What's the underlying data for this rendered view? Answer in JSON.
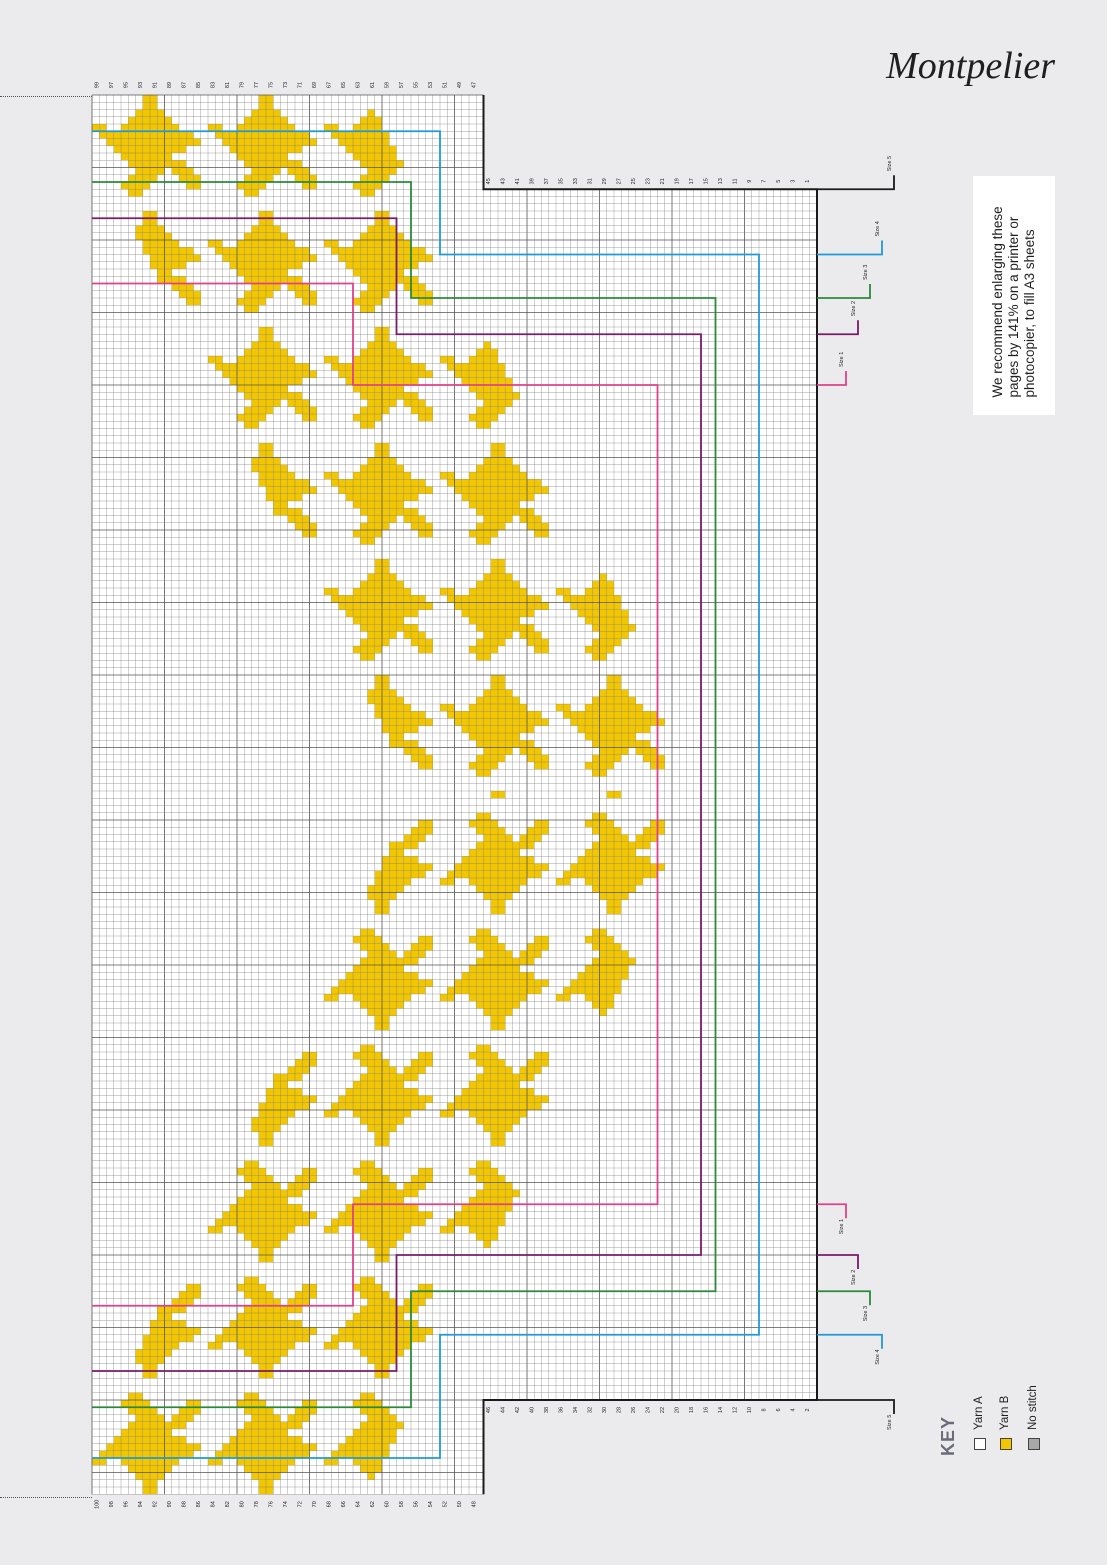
{
  "page": {
    "title": "Montpelier"
  },
  "note": {
    "text": "We recommend enlarging these pages by 141% on a printer or photocopier, to fill A3 sheets"
  },
  "key": {
    "title": "KEY",
    "items": [
      {
        "label": "Yarn A",
        "color": "#ffffff"
      },
      {
        "label": "Yarn B",
        "color": "#f2c600"
      },
      {
        "label": "No stitch",
        "color": "#a8a8a8"
      }
    ]
  },
  "chart_data": {
    "type": "knitting-chart",
    "columns_top": [
      "99",
      "97",
      "95",
      "93",
      "91",
      "89",
      "87",
      "85",
      "83",
      "81",
      "79",
      "77",
      "75",
      "73",
      "71",
      "69",
      "67",
      "65",
      "63",
      "61",
      "59",
      "57",
      "55",
      "53",
      "51",
      "49",
      "47"
    ],
    "columns_top_inner": [
      "45",
      "43",
      "41",
      "39",
      "37",
      "35",
      "33",
      "31",
      "29",
      "27",
      "25",
      "23",
      "21",
      "19",
      "17",
      "15",
      "13",
      "11",
      "9",
      "7",
      "5",
      "3",
      "1"
    ],
    "columns_bottom": [
      "100",
      "98",
      "96",
      "94",
      "92",
      "90",
      "88",
      "86",
      "84",
      "82",
      "80",
      "78",
      "76",
      "74",
      "72",
      "70",
      "68",
      "66",
      "64",
      "62",
      "60",
      "58",
      "56",
      "54",
      "52",
      "50",
      "48"
    ],
    "columns_bottom_inner": [
      "46",
      "44",
      "42",
      "40",
      "38",
      "36",
      "34",
      "32",
      "30",
      "28",
      "26",
      "24",
      "22",
      "20",
      "18",
      "16",
      "14",
      "12",
      "10",
      "8",
      "6",
      "4",
      "2"
    ],
    "sizes": [
      {
        "label": "Size 1",
        "color": "#e0418a"
      },
      {
        "label": "Size 2",
        "color": "#7a1a6a"
      },
      {
        "label": "Size 3",
        "color": "#2a8a3a"
      },
      {
        "label": "Size 4",
        "color": "#1f9ad6"
      },
      {
        "label": "Size 5",
        "color": "#1a1a1a"
      }
    ],
    "colors": {
      "yarn_a": "#ffffff",
      "yarn_b": "#f2c600",
      "grid": "#7a7a7a"
    }
  }
}
